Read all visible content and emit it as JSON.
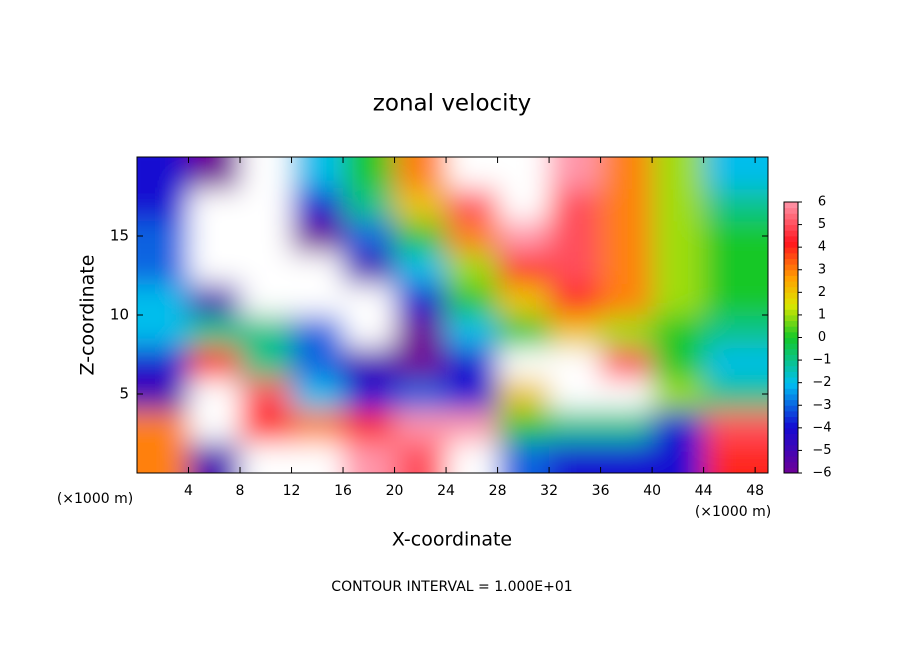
{
  "chart_data": {
    "type": "heatmap",
    "title": "zonal velocity",
    "xlabel": "X-coordinate",
    "ylabel": "Z-coordinate",
    "x_unit": "(×1000 m)",
    "y_unit": "(×1000 m)",
    "footer": "CONTOUR INTERVAL = 1.000E+01",
    "xlim": [
      0,
      49
    ],
    "ylim": [
      0,
      20
    ],
    "xticks": [
      4,
      8,
      12,
      16,
      20,
      24,
      28,
      32,
      36,
      40,
      44,
      48
    ],
    "yticks": [
      5,
      10,
      15
    ],
    "zlim": [
      -6,
      6
    ],
    "zticks": [
      {
        "value": -6,
        "label": "−6"
      },
      {
        "value": -5,
        "label": "−5"
      },
      {
        "value": -4,
        "label": "−4"
      },
      {
        "value": -3,
        "label": "−3"
      },
      {
        "value": -2,
        "label": "−2"
      },
      {
        "value": -1,
        "label": "−1"
      },
      0,
      1,
      2,
      3,
      4,
      5,
      6
    ],
    "x": [
      2,
      6,
      10,
      14,
      18,
      22,
      26,
      30,
      34,
      38,
      42,
      46
    ],
    "y": [
      1,
      3,
      5,
      7,
      9,
      11,
      13,
      15,
      17,
      19
    ],
    "z": [
      [
        3,
        -5,
        7,
        8,
        6,
        5,
        7,
        -3,
        -4,
        -4,
        -4,
        4
      ],
      [
        3,
        8,
        4,
        3,
        4,
        6,
        6,
        0,
        -1,
        -1,
        -4,
        5
      ],
      [
        -5,
        7,
        5,
        -2,
        -4,
        -3,
        -4,
        2,
        8,
        8,
        1,
        -1
      ],
      [
        -4,
        4,
        -1,
        -3,
        -5,
        -6,
        -4,
        7,
        8,
        5,
        0,
        -2
      ],
      [
        -2,
        -1,
        -1,
        -3,
        -8,
        -6,
        -2,
        0,
        2,
        1,
        0,
        -1
      ],
      [
        -2,
        -5,
        -8,
        -8,
        -7,
        -4,
        0,
        2,
        4,
        3,
        1,
        0
      ],
      [
        -3,
        -8,
        -8,
        -8,
        -5,
        -2,
        1,
        4,
        5,
        3,
        1,
        0
      ],
      [
        -3,
        -8,
        -8,
        -6,
        -3,
        0,
        3,
        6,
        5,
        3,
        1,
        0
      ],
      [
        -4,
        -7,
        -8,
        -4,
        -1,
        2,
        5,
        8,
        5,
        3,
        1,
        -1
      ],
      [
        -4,
        -6,
        -8,
        -2,
        0,
        3,
        7,
        8,
        6,
        3,
        1,
        -2
      ]
    ]
  }
}
